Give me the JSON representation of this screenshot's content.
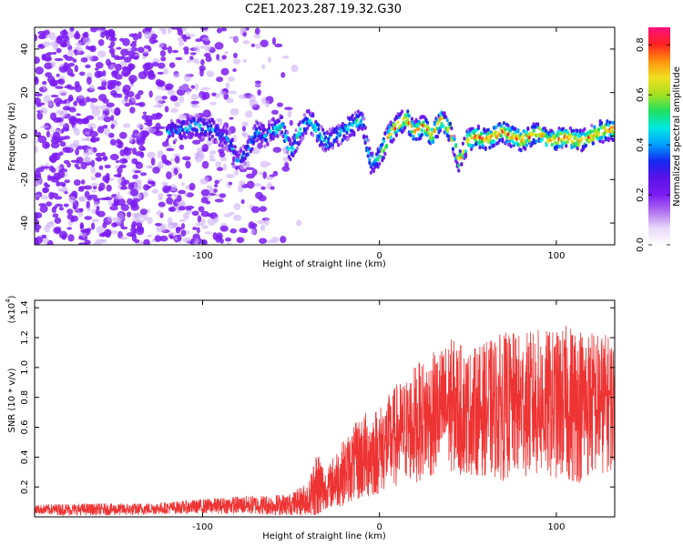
{
  "figure_title": "C2E1.2023.287.19.32.G30",
  "chart_data": [
    {
      "type": "heatmap",
      "xlabel": "Height of straight line (km)",
      "ylabel": "Frequency (Hz)",
      "xlim": [
        -195,
        133
      ],
      "ylim": [
        -50,
        50
      ],
      "xticks": [
        -100,
        0,
        100
      ],
      "yticks": [
        -40,
        -20,
        0,
        20,
        40
      ],
      "colorbar": {
        "label": "Normalized spectral amplitude",
        "range": [
          0.0,
          0.87
        ],
        "ticks": [
          0.0,
          0.2,
          0.4,
          0.6,
          0.8
        ],
        "colormap": [
          "#ffffff",
          "#e8d8f8",
          "#b070f0",
          "#7b1cf2",
          "#5a12e8",
          "#1428f0",
          "#00a0ff",
          "#00e8e0",
          "#20e060",
          "#a8e020",
          "#f0e020",
          "#ff9010",
          "#ff2020",
          "#ff1080"
        ]
      },
      "ridge": {
        "description_free": true,
        "x": [
          -115,
          -105,
          -95,
          -85,
          -80,
          -75,
          -70,
          -65,
          -60,
          -55,
          -50,
          -45,
          -40,
          -35,
          -30,
          -25,
          -20,
          -15,
          -10,
          -5,
          0,
          5,
          10,
          15,
          20,
          25,
          30,
          35,
          40,
          45,
          50,
          55,
          60,
          65,
          70,
          75,
          80,
          85,
          90,
          95,
          100,
          105,
          110,
          115,
          120,
          125,
          130
        ],
        "y": [
          2,
          5,
          3,
          -2,
          -12,
          -8,
          2,
          0,
          3,
          5,
          -8,
          2,
          8,
          2,
          -3,
          0,
          2,
          5,
          8,
          -12,
          -10,
          0,
          5,
          8,
          2,
          5,
          0,
          8,
          2,
          -12,
          -2,
          0,
          -2,
          0,
          2,
          0,
          -2,
          0,
          2,
          -2,
          -2,
          0,
          -2,
          -2,
          0,
          2,
          3
        ]
      }
    },
    {
      "type": "line",
      "xlabel": "Height of straight line (km)",
      "ylabel": "SNR (10 * v/v)",
      "yscale_label": "(x10",
      "yscale_exp": "4",
      "xlim": [
        -195,
        133
      ],
      "ylim": [
        0,
        1.45
      ],
      "xticks": [
        -100,
        0,
        100
      ],
      "yticks": [
        0.2,
        0.4,
        0.6,
        0.8,
        1.0,
        1.2,
        1.4
      ],
      "ytick_labels": [
        "0.2",
        "0.4",
        "0.6",
        "0.8",
        "1.0",
        "1.2",
        "1.4"
      ],
      "series": [
        {
          "color": "#ee3333",
          "envelope_x": [
            -195,
            -180,
            -160,
            -140,
            -120,
            -100,
            -80,
            -60,
            -50,
            -40,
            -35,
            -30,
            -25,
            -20,
            -15,
            -10,
            -5,
            0,
            5,
            10,
            15,
            20,
            25,
            30,
            35,
            40,
            45,
            50,
            60,
            70,
            80,
            90,
            100,
            110,
            120,
            133
          ],
          "envelope_mean": [
            0.05,
            0.05,
            0.05,
            0.05,
            0.06,
            0.07,
            0.08,
            0.08,
            0.08,
            0.12,
            0.2,
            0.18,
            0.25,
            0.3,
            0.35,
            0.4,
            0.42,
            0.45,
            0.5,
            0.55,
            0.58,
            0.62,
            0.66,
            0.68,
            0.72,
            0.75,
            0.72,
            0.7,
            0.72,
            0.74,
            0.75,
            0.76,
            0.75,
            0.76,
            0.76,
            0.76
          ],
          "envelope_amp": [
            0.03,
            0.04,
            0.04,
            0.04,
            0.04,
            0.05,
            0.06,
            0.07,
            0.08,
            0.12,
            0.3,
            0.12,
            0.2,
            0.22,
            0.25,
            0.3,
            0.3,
            0.3,
            0.32,
            0.35,
            0.35,
            0.4,
            0.4,
            0.42,
            0.42,
            0.45,
            0.45,
            0.42,
            0.45,
            0.5,
            0.48,
            0.5,
            0.5,
            0.55,
            0.5,
            0.45
          ]
        }
      ]
    }
  ]
}
